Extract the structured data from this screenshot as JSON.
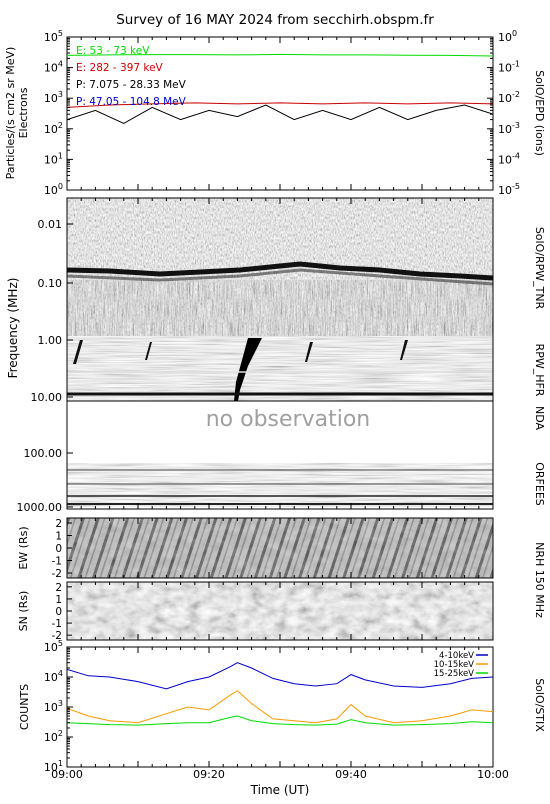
{
  "title": "Survey of 16 MAY 2024 from secchirh.obspm.fr",
  "time_axis": {
    "label": "Time (UT)",
    "ticks": [
      "09:00",
      "09:20",
      "09:40",
      "10:00"
    ],
    "range": [
      "09:00",
      "10:00"
    ]
  },
  "colors": {
    "green": "#00dd00",
    "red": "#cc0000",
    "black": "#000000",
    "blue": "#0000cc",
    "orange": "#ff9900"
  },
  "chart_data": [
    {
      "type": "line",
      "panel": "SolO/EPD",
      "right_label": "SolO/EPD (ions)",
      "ylabel": [
        "Particles/(s cm2 sr MeV)",
        "Electrons"
      ],
      "yscale": "log",
      "ylim": [
        1,
        100000
      ],
      "y_ticks": [
        "10^0",
        "10^1",
        "10^2",
        "10^3",
        "10^4",
        "10^5"
      ],
      "y2lim": [
        1e-05,
        1
      ],
      "y2_ticks": [
        "10^-5",
        "10^-4",
        "10^-3",
        "10^-2",
        "10^-1",
        "10^0"
      ],
      "legend": [
        {
          "label": "E: 53 - 73 keV",
          "color": "#00dd00"
        },
        {
          "label": "E: 282 - 397 keV",
          "color": "#cc0000"
        },
        {
          "label": "P: 7.075 - 28.33 MeV",
          "color": "#000000"
        },
        {
          "label": "P: 47.05 - 104.8 MeV",
          "color": "#0000cc"
        }
      ],
      "series": [
        {
          "label": "E: 53 - 73 keV",
          "color": "#00dd00",
          "axis": "left",
          "x": [
            "09:00",
            "09:06",
            "09:12",
            "09:18",
            "09:24",
            "09:30",
            "09:36",
            "09:42",
            "09:48",
            "09:54",
            "10:00"
          ],
          "y": [
            25000,
            26000,
            26500,
            26500,
            26000,
            27000,
            26000,
            26000,
            25500,
            25000,
            24000
          ]
        },
        {
          "label": "E: 282 - 397 keV",
          "color": "#cc0000",
          "axis": "left",
          "x": [
            "09:00",
            "09:06",
            "09:12",
            "09:18",
            "09:24",
            "09:30",
            "09:36",
            "09:42",
            "09:48",
            "09:54",
            "10:00"
          ],
          "y": [
            500,
            600,
            650,
            700,
            650,
            700,
            650,
            700,
            650,
            700,
            650
          ]
        },
        {
          "label": "P: 7.075 - 28.33 MeV",
          "color": "#000000",
          "axis": "right",
          "x": [
            "09:00",
            "09:04",
            "09:08",
            "09:12",
            "09:16",
            "09:20",
            "09:24",
            "09:28",
            "09:32",
            "09:36",
            "09:40",
            "09:44",
            "09:48",
            "09:52",
            "09:56",
            "10:00"
          ],
          "y": [
            0.002,
            0.004,
            0.0015,
            0.005,
            0.002,
            0.004,
            0.0025,
            0.006,
            0.002,
            0.004,
            0.002,
            0.005,
            0.002,
            0.004,
            0.006,
            0.003
          ]
        },
        {
          "label": "P: 47.05 - 104.8 MeV",
          "color": "#0000cc",
          "axis": "right",
          "x": [],
          "y": []
        }
      ]
    },
    {
      "type": "heatmap",
      "panel": "Radio spectrogram",
      "ylabel": "Frequency (MHz)",
      "yscale": "log",
      "ylim": [
        0.004,
        1000
      ],
      "y_ticks": [
        "0.01",
        "0.10",
        "1.00",
        "10.00",
        "100.00",
        "1000.00"
      ],
      "bands": [
        {
          "label": "SolO/RPW_TNR",
          "range_mhz": [
            0.004,
            1.0
          ]
        },
        {
          "label": "RPW_HFR",
          "range_mhz": [
            1.0,
            16.0
          ]
        },
        {
          "label": "NDA",
          "range_mhz": [
            16.0,
            150.0
          ],
          "annotation": "no observation"
        },
        {
          "label": "ORFEES",
          "range_mhz": [
            150.0,
            1000.0
          ]
        }
      ]
    },
    {
      "type": "heatmap",
      "panel": "NRH 150 MHz",
      "right_label": "NRH 150 MHz",
      "subpanels": [
        {
          "ylabel": "EW (Rs)",
          "ylim": [
            -2.4,
            2.4
          ],
          "y_ticks": [
            "2",
            "1",
            "0",
            "-1",
            "-2"
          ]
        },
        {
          "ylabel": "SN (Rs)",
          "ylim": [
            -2.4,
            2.4
          ],
          "y_ticks": [
            "2",
            "1",
            "0",
            "-1",
            "-2"
          ]
        }
      ]
    },
    {
      "type": "line",
      "panel": "SolO/STIX",
      "right_label": "SolO/STIX",
      "ylabel": "COUNTS",
      "yscale": "log",
      "ylim": [
        10,
        100000
      ],
      "y_ticks": [
        "10^1",
        "10^2",
        "10^3",
        "10^4",
        "10^5"
      ],
      "legend": [
        {
          "label": "4-10keV",
          "color": "#0000cc"
        },
        {
          "label": "10-15keV",
          "color": "#ff9900"
        },
        {
          "label": "15-25keV",
          "color": "#00dd00"
        }
      ],
      "series": [
        {
          "label": "4-10keV",
          "color": "#0000cc",
          "x": [
            "09:00",
            "09:03",
            "09:06",
            "09:10",
            "09:14",
            "09:17",
            "09:20",
            "09:23",
            "09:24",
            "09:26",
            "09:29",
            "09:32",
            "09:35",
            "09:38",
            "09:40",
            "09:42",
            "09:46",
            "09:50",
            "09:54",
            "09:57",
            "10:00"
          ],
          "y": [
            18000,
            11000,
            10000,
            7000,
            4000,
            7000,
            10000,
            22000,
            30000,
            20000,
            9000,
            6000,
            5000,
            6000,
            12000,
            8000,
            5000,
            4500,
            6000,
            9000,
            10000
          ]
        },
        {
          "label": "10-15keV",
          "color": "#ff9900",
          "x": [
            "09:00",
            "09:03",
            "09:06",
            "09:10",
            "09:14",
            "09:17",
            "09:20",
            "09:23",
            "09:24",
            "09:26",
            "09:29",
            "09:32",
            "09:35",
            "09:38",
            "09:40",
            "09:42",
            "09:46",
            "09:50",
            "09:54",
            "09:57",
            "10:00"
          ],
          "y": [
            900,
            500,
            350,
            300,
            600,
            1000,
            800,
            2500,
            3500,
            1300,
            400,
            350,
            300,
            400,
            1200,
            500,
            300,
            350,
            500,
            800,
            700
          ]
        },
        {
          "label": "15-25keV",
          "color": "#00dd00",
          "x": [
            "09:00",
            "09:03",
            "09:06",
            "09:10",
            "09:14",
            "09:17",
            "09:20",
            "09:23",
            "09:24",
            "09:26",
            "09:29",
            "09:32",
            "09:35",
            "09:38",
            "09:40",
            "09:42",
            "09:46",
            "09:50",
            "09:54",
            "09:57",
            "10:00"
          ],
          "y": [
            300,
            280,
            260,
            250,
            280,
            300,
            300,
            450,
            500,
            350,
            280,
            260,
            250,
            270,
            380,
            300,
            250,
            260,
            280,
            320,
            300
          ]
        }
      ]
    }
  ]
}
